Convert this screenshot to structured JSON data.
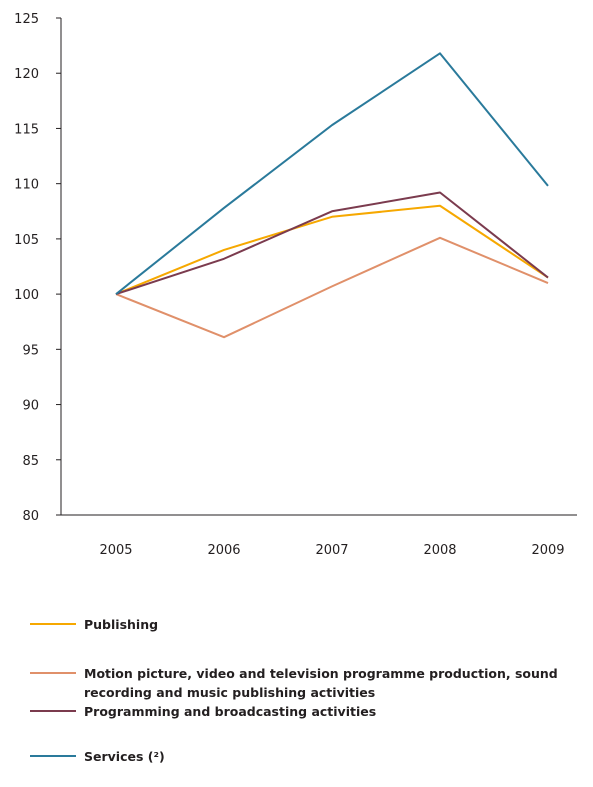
{
  "chart_data": {
    "type": "line",
    "title": "",
    "xlabel": "",
    "ylabel": "",
    "x": [
      "2005",
      "2006",
      "2007",
      "2008",
      "2009"
    ],
    "ylim": [
      80,
      125
    ],
    "yticks": [
      80,
      85,
      90,
      95,
      100,
      105,
      110,
      115,
      120,
      125
    ],
    "grid": false,
    "legend_position": "bottom",
    "series": [
      {
        "name": "Publishing",
        "color": "#f6a800",
        "values": [
          100,
          104,
          107,
          108,
          101.5
        ]
      },
      {
        "name": "Motion picture, video and television programme production, sound recording and music publishing activities",
        "color": "#e0906a",
        "values": [
          100,
          96.1,
          100.7,
          105.1,
          101
        ]
      },
      {
        "name": "Programming and broadcasting activities",
        "color": "#7b3b4e",
        "values": [
          100,
          103.2,
          107.5,
          109.2,
          101.5
        ]
      },
      {
        "name": "Services (²)",
        "color": "#2a7a9b",
        "values": [
          100,
          107.8,
          115.3,
          121.8,
          109.8
        ]
      }
    ]
  }
}
